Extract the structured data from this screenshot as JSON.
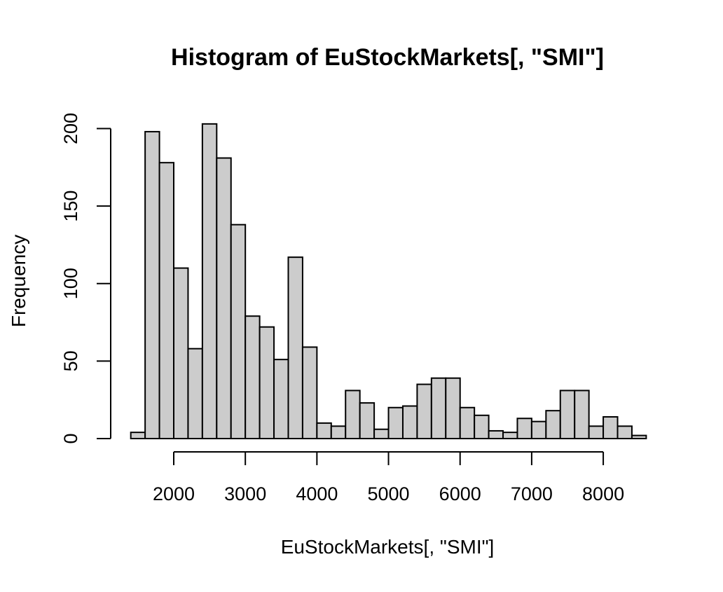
{
  "chart_data": {
    "type": "bar",
    "subtype": "histogram",
    "title": "Histogram of EuStockMarkets[, \"SMI\"]",
    "xlabel": "EuStockMarkets[, \"SMI\"]",
    "ylabel": "Frequency",
    "bin_width": 200,
    "x_ticks": [
      2000,
      3000,
      4000,
      5000,
      6000,
      7000,
      8000
    ],
    "y_ticks": [
      0,
      50,
      100,
      150,
      200
    ],
    "xlim": [
      1400,
      8600
    ],
    "ylim": [
      0,
      200
    ],
    "grid": false,
    "legend": "none",
    "bins": [
      {
        "start": 1400,
        "end": 1600,
        "count": 4
      },
      {
        "start": 1600,
        "end": 1800,
        "count": 198
      },
      {
        "start": 1800,
        "end": 2000,
        "count": 178
      },
      {
        "start": 2000,
        "end": 2200,
        "count": 110
      },
      {
        "start": 2200,
        "end": 2400,
        "count": 58
      },
      {
        "start": 2400,
        "end": 2600,
        "count": 203
      },
      {
        "start": 2600,
        "end": 2800,
        "count": 181
      },
      {
        "start": 2800,
        "end": 3000,
        "count": 138
      },
      {
        "start": 3000,
        "end": 3200,
        "count": 79
      },
      {
        "start": 3200,
        "end": 3400,
        "count": 72
      },
      {
        "start": 3400,
        "end": 3600,
        "count": 51
      },
      {
        "start": 3600,
        "end": 3800,
        "count": 117
      },
      {
        "start": 3800,
        "end": 4000,
        "count": 59
      },
      {
        "start": 4000,
        "end": 4200,
        "count": 10
      },
      {
        "start": 4200,
        "end": 4400,
        "count": 8
      },
      {
        "start": 4400,
        "end": 4600,
        "count": 31
      },
      {
        "start": 4600,
        "end": 4800,
        "count": 23
      },
      {
        "start": 4800,
        "end": 5000,
        "count": 6
      },
      {
        "start": 5000,
        "end": 5200,
        "count": 20
      },
      {
        "start": 5200,
        "end": 5400,
        "count": 21
      },
      {
        "start": 5400,
        "end": 5600,
        "count": 35
      },
      {
        "start": 5600,
        "end": 5800,
        "count": 39
      },
      {
        "start": 5800,
        "end": 6000,
        "count": 39
      },
      {
        "start": 6000,
        "end": 6200,
        "count": 20
      },
      {
        "start": 6200,
        "end": 6400,
        "count": 15
      },
      {
        "start": 6400,
        "end": 6600,
        "count": 5
      },
      {
        "start": 6600,
        "end": 6800,
        "count": 4
      },
      {
        "start": 6800,
        "end": 7000,
        "count": 13
      },
      {
        "start": 7000,
        "end": 7200,
        "count": 11
      },
      {
        "start": 7200,
        "end": 7400,
        "count": 18
      },
      {
        "start": 7400,
        "end": 7600,
        "count": 31
      },
      {
        "start": 7600,
        "end": 7800,
        "count": 31
      },
      {
        "start": 7800,
        "end": 8000,
        "count": 8
      },
      {
        "start": 8000,
        "end": 8200,
        "count": 14
      },
      {
        "start": 8200,
        "end": 8400,
        "count": 8
      },
      {
        "start": 8400,
        "end": 8600,
        "count": 2
      }
    ],
    "colors": {
      "bar_fill": "#cccccc",
      "bar_stroke": "#000000",
      "axis": "#000000",
      "background": "#ffffff"
    }
  }
}
